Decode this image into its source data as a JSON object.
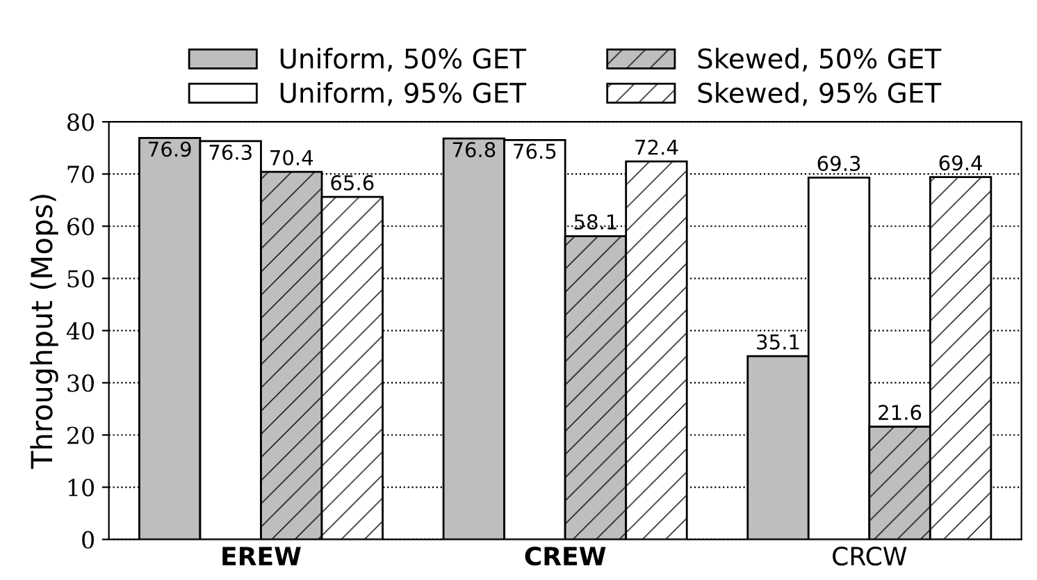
{
  "chart_data": {
    "type": "bar",
    "ylabel": "Throughput (Mops)",
    "categories": [
      "EREW",
      "CREW",
      "CRCW"
    ],
    "series": [
      {
        "name": "Uniform, 50% GET",
        "color": "#bebebe",
        "values": [
          76.9,
          76.8,
          35.1
        ]
      },
      {
        "name": "Uniform, 95% GET",
        "color": "#ffffff",
        "values": [
          76.3,
          76.5,
          69.3
        ]
      },
      {
        "name": "Skewed, 50% GET",
        "color": "#bebebe",
        "values": [
          70.4,
          58.1,
          21.6
        ]
      },
      {
        "name": "Skewed, 95% GET",
        "color": "#ffffff",
        "values": [
          65.6,
          72.4,
          69.4
        ]
      }
    ],
    "ylim": [
      0,
      80
    ],
    "yticks": [
      0,
      10,
      20,
      30,
      40,
      50,
      60,
      70,
      80
    ],
    "grid": "y",
    "legend": "top",
    "data_labels": true
  }
}
